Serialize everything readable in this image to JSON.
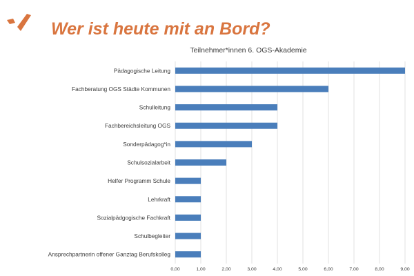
{
  "slide": {
    "title": "Wer ist heute mit an Bord?",
    "accent_color": "#d9753f",
    "logo_icon": "orange-check-mark-logo"
  },
  "chart_data": {
    "type": "bar",
    "orientation": "horizontal",
    "title": "Teilnehmer*innen 6. OGS-Akademie",
    "categories": [
      "Pädagogische Leitung",
      "Fachberatung OGS Städte Kommunen",
      "Schulleitung",
      "Fachbereichsleitung OGS",
      "Sonderpädagog*in",
      "Schulsozialarbeit",
      "Helfer Programm Schule",
      "Lehrkraft",
      "Sozialpädgogische Fachkraft",
      "Schulbegleiter",
      "Ansprechpartnerin offener Ganztag Berufskolleg"
    ],
    "values": [
      9,
      6,
      4,
      4,
      3,
      2,
      1,
      1,
      1,
      1,
      1
    ],
    "xlim": [
      0,
      9
    ],
    "ticks": [
      "0,00",
      "1,00",
      "2,00",
      "3,00",
      "4,00",
      "5,00",
      "6,00",
      "7,00",
      "8,00",
      "9,00"
    ],
    "bar_color": "#4a7ebb",
    "grid_color": "#d9d9d9",
    "grid": true,
    "legend": false
  }
}
